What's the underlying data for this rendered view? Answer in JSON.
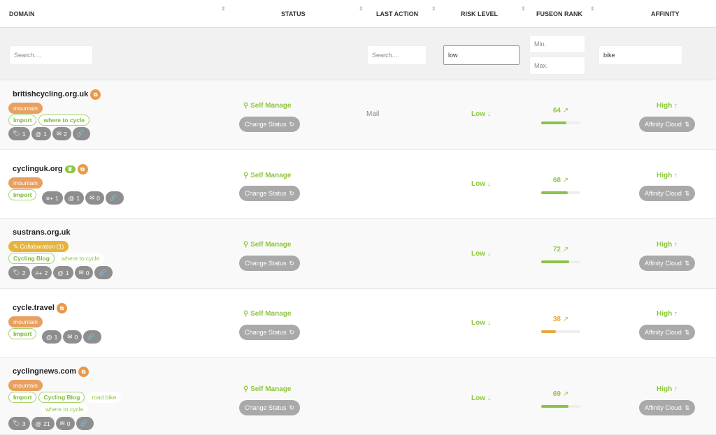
{
  "header": {
    "domain": "DOMAIN",
    "status": "STATUS",
    "last_action": "LAST ACTION",
    "risk_level": "RISK LEVEL",
    "fuseon_rank": "FUSEON RANK",
    "affinity": "AFFINITY"
  },
  "filters": {
    "domain_placeholder": "Search....",
    "last_action_placeholder": "Search....",
    "risk_value": "low",
    "rank_min_placeholder": "Min.",
    "rank_max_placeholder": "Max.",
    "affinity_value": "bike"
  },
  "colors": {
    "green": "#8dc63f",
    "orange": "#e8994a",
    "yellow": "#e6b43c",
    "gray": "#8e8e8e",
    "bar_green": "#8bc34a",
    "bar_orange": "#e8a83a"
  },
  "rows": [
    {
      "domain": "britishcycling.org.uk",
      "icons": [
        "monitor-share-icon"
      ],
      "tags": [
        {
          "label": "mountain",
          "style": "orange"
        },
        {
          "label": "Import",
          "style": "outline"
        },
        {
          "label": "where to cycle",
          "style": "outline"
        }
      ],
      "pills": [
        {
          "icon": "tag-icon",
          "count": "1"
        },
        {
          "icon": "at-icon",
          "count": "1"
        },
        {
          "icon": "mail-icon",
          "count": "2"
        },
        {
          "icon": "link-icon",
          "count": ""
        }
      ],
      "status": "Self Manage",
      "change_status": "Change Status",
      "last_action": "Mail",
      "risk": "Low ↓",
      "rank": "64",
      "rank_pct": 64,
      "rank_color": "green",
      "affinity": "High ↑",
      "affinity_btn": "Affinity Cloud"
    },
    {
      "domain": "cyclinguk.org",
      "icons": [
        "trophy-icon",
        "monitor-share-icon"
      ],
      "tags": [
        {
          "label": "mountain",
          "style": "orange"
        },
        {
          "label": "Import",
          "style": "outline"
        }
      ],
      "pills": [
        {
          "icon": "playlist-add-icon",
          "count": "1"
        },
        {
          "icon": "at-icon",
          "count": "1"
        },
        {
          "icon": "mail-icon",
          "count": "0"
        },
        {
          "icon": "link-icon",
          "count": ""
        }
      ],
      "status": "Self Manage",
      "change_status": "Change Status",
      "last_action": "",
      "risk": "Low ↓",
      "rank": "68",
      "rank_pct": 68,
      "rank_color": "green",
      "affinity": "High ↑",
      "affinity_btn": "Affinity Cloud"
    },
    {
      "domain": "sustrans.org.uk",
      "icons": [],
      "tags": [
        {
          "label": "Collaboration (1)",
          "style": "yellow"
        },
        {
          "label": "Cycling Blog",
          "style": "outline"
        },
        {
          "label": "where to cycle",
          "style": "plain"
        }
      ],
      "pills": [
        {
          "icon": "tag-icon",
          "count": "2"
        },
        {
          "icon": "playlist-add-icon",
          "count": "2"
        },
        {
          "icon": "at-icon",
          "count": "1"
        },
        {
          "icon": "mail-icon",
          "count": "0"
        },
        {
          "icon": "link-icon",
          "count": ""
        }
      ],
      "status": "Self Manage",
      "change_status": "Change Status",
      "last_action": "",
      "risk": "Low ↓",
      "rank": "72",
      "rank_pct": 72,
      "rank_color": "green",
      "affinity": "High ↑",
      "affinity_btn": "Affinity Cloud"
    },
    {
      "domain": "cycle.travel",
      "icons": [
        "monitor-share-icon"
      ],
      "tags": [
        {
          "label": "mountain",
          "style": "orange"
        },
        {
          "label": "Import",
          "style": "outline"
        }
      ],
      "pills": [
        {
          "icon": "at-icon",
          "count": "1"
        },
        {
          "icon": "mail-icon",
          "count": "0"
        },
        {
          "icon": "link-icon",
          "count": ""
        }
      ],
      "status": "Self Manage",
      "change_status": "Change Status",
      "last_action": "",
      "risk": "Low ↓",
      "rank": "38",
      "rank_pct": 38,
      "rank_color": "orange",
      "affinity": "High ↑",
      "affinity_btn": "Affinity Cloud"
    },
    {
      "domain": "cyclingnews.com",
      "icons": [
        "monitor-share-icon"
      ],
      "tags": [
        {
          "label": "mountain",
          "style": "orange"
        },
        {
          "label": "Import",
          "style": "outline"
        },
        {
          "label": "Cycling Blog",
          "style": "outline"
        },
        {
          "label": "road bike",
          "style": "plain"
        },
        {
          "label": "where to cycle",
          "style": "plain"
        }
      ],
      "pills": [
        {
          "icon": "tag-icon",
          "count": "3"
        },
        {
          "icon": "at-icon",
          "count": "21"
        },
        {
          "icon": "mail-icon",
          "count": "0"
        },
        {
          "icon": "link-icon",
          "count": ""
        }
      ],
      "status": "Self Manage",
      "change_status": "Change Status",
      "last_action": "",
      "risk": "Low ↓",
      "rank": "69",
      "rank_pct": 69,
      "rank_color": "green",
      "affinity": "High ↑",
      "affinity_btn": "Affinity Cloud"
    }
  ]
}
